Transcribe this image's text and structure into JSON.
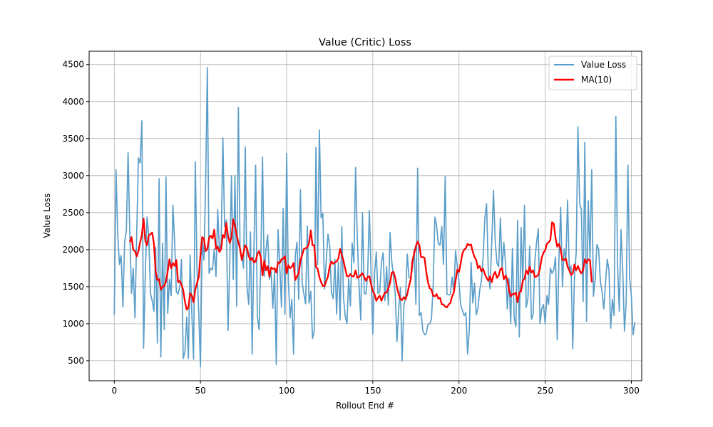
{
  "chart_data": {
    "type": "line",
    "title": "Value (Critic) Loss",
    "xlabel": "Rollout End #",
    "ylabel": "Value Loss",
    "xlim": [
      -14.6,
      306
    ],
    "ylim": [
      230,
      4680
    ],
    "xticks": [
      0,
      50,
      100,
      150,
      200,
      250,
      300
    ],
    "yticks": [
      500,
      1000,
      1500,
      2000,
      2500,
      3000,
      3500,
      4000,
      4500
    ],
    "grid": true,
    "legend_position": "top-right",
    "series": [
      {
        "name": "Value Loss",
        "color": "#5b9ec9",
        "values": [
          1120,
          3080,
          2200,
          1800,
          1920,
          1230,
          2100,
          2260,
          3310,
          2220,
          1410,
          1750,
          1080,
          2200,
          3240,
          3170,
          3740,
          670,
          1690,
          2440,
          2190,
          1410,
          1310,
          1170,
          2030,
          740,
          2960,
          550,
          2090,
          920,
          2980,
          1140,
          1600,
          1380,
          2600,
          2110,
          1430,
          1400,
          1500,
          1870,
          530,
          620,
          1090,
          530,
          1930,
          1130,
          520,
          3190,
          1720,
          1160,
          420,
          2160,
          1860,
          2900,
          4460,
          1680,
          1750,
          1730,
          2010,
          1640,
          2540,
          1970,
          2100,
          3510,
          2310,
          2400,
          910,
          1830,
          3000,
          1600,
          3000,
          1240,
          3920,
          1960,
          1920,
          1750,
          3390,
          1490,
          1260,
          2240,
          590,
          1990,
          3140,
          1100,
          920,
          1850,
          3250,
          1640,
          2000,
          2200,
          1600,
          1700,
          1210,
          1710,
          450,
          2270,
          1790,
          1220,
          2560,
          1130,
          3300,
          1580,
          1080,
          1330,
          590,
          1920,
          2100,
          1330,
          2810,
          1560,
          1400,
          1270,
          2320,
          1280,
          1440,
          800,
          900,
          3380,
          1800,
          3620,
          2430,
          2490,
          1470,
          1860,
          2210,
          2050,
          1420,
          1340,
          1870,
          1130,
          1830,
          1050,
          2310,
          1350,
          1100,
          1000,
          1610,
          1240,
          2090,
          1820,
          3110,
          2140,
          1510,
          1050,
          2500,
          1410,
          1400,
          1670,
          2530,
          1680,
          860,
          1680,
          1970,
          1410,
          1430,
          1820,
          1960,
          1310,
          1770,
          1250,
          2230,
          1840,
          1620,
          1410,
          760,
          1190,
          1490,
          500,
          1250,
          1350,
          1940,
          1620,
          1630,
          1750,
          2000,
          1260,
          3100,
          1110,
          1150,
          910,
          850,
          870,
          990,
          1000,
          1060,
          1510,
          2440,
          2330,
          2080,
          2060,
          2310,
          1800,
          2990,
          1400,
          1390,
          1400,
          1630,
          1430,
          1990,
          1770,
          1570,
          1250,
          1180,
          1110,
          1150,
          590,
          930,
          1830,
          1280,
          1550,
          1120,
          1210,
          1450,
          1580,
          1890,
          2430,
          2620,
          1690,
          1470,
          2100,
          2800,
          2120,
          1820,
          1770,
          2430,
          1730,
          2100,
          1820,
          1200,
          1610,
          1000,
          2020,
          1080,
          960,
          2400,
          820,
          2300,
          1530,
          2600,
          1220,
          1340,
          2050,
          1060,
          1120,
          1840,
          2100,
          2280,
          1000,
          1200,
          1260,
          1000,
          1380,
          1260,
          1750,
          1680,
          1730,
          1900,
          780,
          1900,
          2570,
          1500,
          2010,
          1860,
          2670,
          1710,
          1780,
          660,
          1640,
          1970,
          3660,
          2630,
          2540,
          1300,
          3450,
          1030,
          2660,
          1880,
          3080,
          1370,
          1590,
          2070,
          2010,
          1580,
          1430,
          1200,
          1550,
          1870,
          1730,
          940,
          1330,
          1110,
          3800,
          1800,
          1170,
          2270,
          1720,
          900,
          1290,
          3140,
          1610,
          1380,
          850,
          1020
        ]
      },
      {
        "name": "MA(10)",
        "color": "#ff0000",
        "values": [
          2100,
          2170,
          2000,
          1980,
          1910,
          1980,
          2100,
          2200,
          2420,
          2120,
          2060,
          2190,
          2210,
          2230,
          2080,
          1700,
          1590,
          1600,
          1460,
          1500,
          1510,
          1570,
          1710,
          1870,
          1750,
          1820,
          1780,
          1860,
          1560,
          1580,
          1530,
          1450,
          1300,
          1190,
          1220,
          1410,
          1380,
          1290,
          1460,
          1550,
          1630,
          1930,
          2170,
          2150,
          1980,
          2010,
          2160,
          2190,
          2150,
          2270,
          2010,
          2040,
          1970,
          2010,
          2200,
          2160,
          2360,
          2180,
          2090,
          2170,
          2410,
          2330,
          2200,
          2100,
          2010,
          1860,
          1960,
          2060,
          2020,
          1910,
          1860,
          1890,
          1830,
          1840,
          1940,
          1980,
          1900,
          1650,
          1850,
          1720,
          1780,
          1640,
          1760,
          1740,
          1750,
          1690,
          1830,
          1820,
          1870,
          1880,
          1910,
          1680,
          1790,
          1750,
          1770,
          1820,
          1590,
          1640,
          1680,
          1850,
          1930,
          2010,
          2020,
          2030,
          2090,
          2260,
          2060,
          2060,
          1770,
          1740,
          1630,
          1560,
          1510,
          1510,
          1580,
          1640,
          1780,
          1840,
          1810,
          1830,
          1840,
          1880,
          2010,
          1930,
          1850,
          1740,
          1640,
          1640,
          1670,
          1640,
          1640,
          1720,
          1620,
          1630,
          1660,
          1680,
          1630,
          1580,
          1630,
          1640,
          1530,
          1440,
          1400,
          1310,
          1350,
          1380,
          1310,
          1370,
          1420,
          1420,
          1480,
          1550,
          1690,
          1700,
          1620,
          1490,
          1400,
          1330,
          1320,
          1360,
          1330,
          1400,
          1510,
          1600,
          1850,
          1950,
          2050,
          2110,
          2060,
          1900,
          1900,
          1890,
          1700,
          1560,
          1480,
          1460,
          1380,
          1370,
          1400,
          1340,
          1350,
          1260,
          1260,
          1230,
          1220,
          1260,
          1280,
          1370,
          1420,
          1580,
          1730,
          1700,
          1820,
          1950,
          2000,
          2020,
          2080,
          2060,
          2070,
          1970,
          1900,
          1860,
          1750,
          1780,
          1710,
          1740,
          1670,
          1620,
          1580,
          1640,
          1560,
          1660,
          1700,
          1620,
          1650,
          1740,
          1750,
          1600,
          1650,
          1600,
          1460,
          1370,
          1400,
          1400,
          1420,
          1290,
          1420,
          1440,
          1580,
          1610,
          1720,
          1670,
          1770,
          1690,
          1720,
          1630,
          1640,
          1660,
          1750,
          1890,
          1960,
          1990,
          2080,
          2100,
          2130,
          2370,
          2350,
          2160,
          2040,
          2080,
          2000,
          1860,
          1860,
          1880,
          1770,
          1720,
          1660,
          1680,
          1800,
          1720,
          1780,
          1720,
          1680,
          1720,
          1870,
          1820,
          1870,
          1860,
          1560
        ]
      }
    ]
  }
}
